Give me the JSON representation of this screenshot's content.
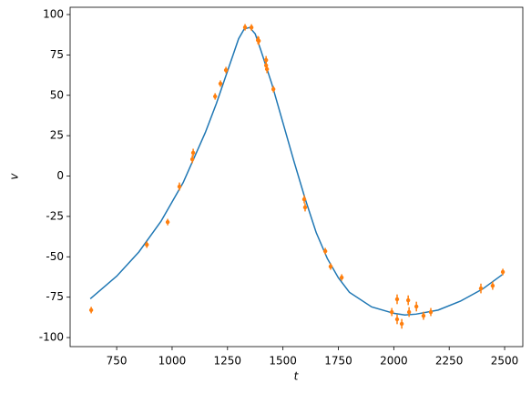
{
  "chart_data": {
    "type": "line",
    "xlabel": "t",
    "ylabel": "v",
    "xlim": [
      540,
      2582
    ],
    "ylim": [
      -105.6,
      104.5
    ],
    "xticks": [
      750,
      1000,
      1250,
      1500,
      1750,
      2000,
      2250,
      2500
    ],
    "yticks": [
      -100,
      -75,
      -50,
      -25,
      0,
      25,
      50,
      75,
      100
    ],
    "grid": false,
    "series": [
      {
        "type": "line",
        "color": "#1f77b4",
        "x": [
          631,
          750,
          850,
          950,
          1050,
          1150,
          1200,
          1250,
          1300,
          1325,
          1350,
          1375,
          1400,
          1450,
          1500,
          1550,
          1600,
          1650,
          1700,
          1750,
          1800,
          1900,
          2000,
          2050,
          2100,
          2200,
          2300,
          2400,
          2490
        ],
        "values": [
          -76,
          -62,
          -47,
          -28,
          -4,
          27,
          45,
          65,
          85,
          91,
          92,
          88,
          78,
          57,
          33,
          9,
          -14,
          -35,
          -51,
          -63,
          -72,
          -81,
          -85,
          -86,
          -85.5,
          -83,
          -77.5,
          -70,
          -61
        ]
      },
      {
        "type": "errorbar",
        "color": "#ff7f0e",
        "x": [
          635,
          886,
          980,
          1033,
          1091,
          1095,
          1194,
          1218,
          1243,
          1329,
          1358,
          1387,
          1391,
          1424,
          1424,
          1428,
          1457,
          1596,
          1600,
          1691,
          1715,
          1765,
          1991,
          2015,
          2015,
          2036,
          2065,
          2069,
          2102,
          2134,
          2167,
          2393,
          2446,
          2492
        ],
        "values": [
          -83,
          -42.5,
          -28.5,
          -6.5,
          10.4,
          14.4,
          49.3,
          57.2,
          65.6,
          92.1,
          92,
          84.2,
          83.7,
          71.8,
          68.5,
          66.2,
          53.8,
          -14.4,
          -19.4,
          -46.5,
          -56,
          -62.8,
          -84.2,
          -76.3,
          -88.7,
          -91.5,
          -76.9,
          -84.2,
          -80.8,
          -86.5,
          -84.2,
          -69.6,
          -67.9,
          -59.4
        ],
        "errors": [
          2,
          2,
          2,
          2.5,
          2.5,
          2.5,
          2,
          2,
          2,
          2,
          2,
          2.5,
          2.5,
          2.5,
          2.5,
          2.5,
          2,
          2.5,
          2.5,
          2,
          2,
          2,
          2.5,
          3,
          3,
          3,
          3,
          3,
          3,
          2.5,
          2.5,
          3,
          2.5,
          2
        ]
      }
    ]
  }
}
